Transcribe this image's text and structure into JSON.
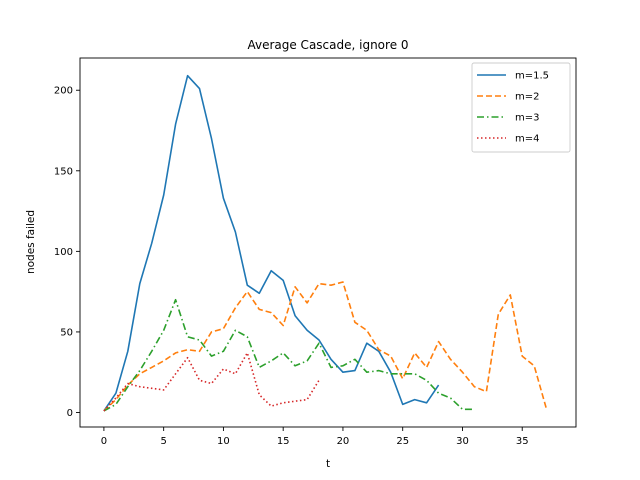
{
  "chart_data": {
    "type": "line",
    "title": "Average Cascade, ignore 0",
    "xlabel": "t",
    "ylabel": "nodes failed",
    "xlim": [
      -2,
      39.5
    ],
    "ylim": [
      -9,
      220
    ],
    "xticks": [
      0,
      5,
      10,
      15,
      20,
      25,
      30,
      35
    ],
    "yticks": [
      0,
      50,
      100,
      150,
      200
    ],
    "grid": false,
    "legend_position": "top-right",
    "series": [
      {
        "name": "m=1.5",
        "color": "#1f77b4",
        "dash": "",
        "x": [
          0,
          1,
          2,
          3,
          4,
          5,
          6,
          7,
          8,
          9,
          10,
          11,
          12,
          13,
          14,
          15,
          16,
          17,
          18,
          19,
          20,
          21,
          22,
          23,
          24,
          25,
          26,
          27,
          28
        ],
        "y": [
          1,
          12,
          38,
          80,
          105,
          135,
          179,
          209,
          201,
          170,
          133,
          112,
          79,
          74,
          88,
          82,
          60,
          51,
          45,
          33,
          25,
          26,
          43,
          38,
          25,
          5,
          8,
          6,
          17
        ]
      },
      {
        "name": "m=2",
        "color": "#ff7f0e",
        "dash": "6,3",
        "x": [
          0,
          1,
          2,
          3,
          4,
          5,
          6,
          7,
          8,
          9,
          10,
          11,
          12,
          13,
          14,
          15,
          16,
          17,
          18,
          19,
          20,
          21,
          22,
          23,
          24,
          25,
          26,
          27,
          28,
          29,
          30,
          31,
          32,
          33,
          34,
          35,
          36,
          37
        ],
        "y": [
          1,
          8,
          17,
          24,
          28,
          32,
          37,
          39,
          38,
          50,
          52,
          65,
          75,
          64,
          62,
          54,
          78,
          68,
          80,
          79,
          81,
          56,
          51,
          39,
          35,
          21,
          37,
          28,
          44,
          33,
          25,
          16,
          13,
          61,
          73,
          35,
          29,
          3
        ]
      },
      {
        "name": "m=3",
        "color": "#2ca02c",
        "dash": "7,3,1.5,3",
        "x": [
          0,
          1,
          2,
          3,
          4,
          5,
          6,
          7,
          8,
          9,
          10,
          11,
          12,
          13,
          14,
          15,
          16,
          17,
          18,
          19,
          20,
          21,
          22,
          23,
          24,
          25,
          26,
          27,
          28,
          29,
          30,
          31
        ],
        "y": [
          1,
          5,
          16,
          26,
          38,
          51,
          70,
          47,
          45,
          35,
          38,
          51,
          47,
          28,
          32,
          37,
          29,
          32,
          43,
          28,
          29,
          33,
          25,
          26,
          24,
          24,
          24,
          20,
          12,
          9,
          2,
          2
        ]
      },
      {
        "name": "m=4",
        "color": "#d62728",
        "dash": "1.5,2.5",
        "x": [
          0,
          1,
          2,
          3,
          4,
          5,
          6,
          7,
          8,
          9,
          10,
          11,
          12,
          13,
          14,
          15,
          16,
          17,
          18
        ],
        "y": [
          1,
          9,
          18,
          16,
          15,
          14,
          24,
          34,
          20,
          18,
          27,
          24,
          37,
          11,
          4,
          6,
          7,
          8,
          20
        ]
      }
    ]
  }
}
